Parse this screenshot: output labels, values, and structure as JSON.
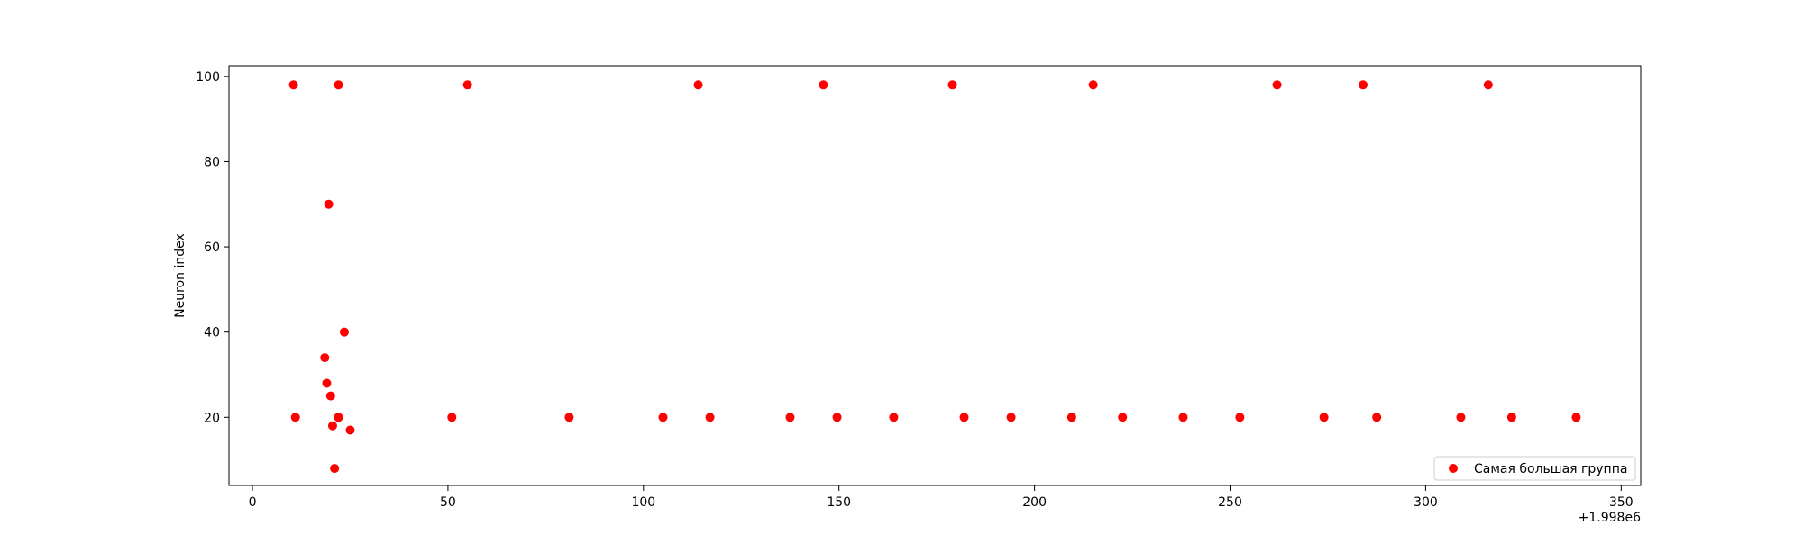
{
  "chart_data": {
    "type": "scatter",
    "title": "",
    "xlabel": "",
    "ylabel": "Neuron index",
    "x_offset_label": "+1.998e6",
    "xlim": [
      -6,
      355
    ],
    "ylim": [
      4,
      102.5
    ],
    "xticks": [
      0,
      50,
      100,
      150,
      200,
      250,
      300,
      350
    ],
    "yticks": [
      20,
      40,
      60,
      80,
      100
    ],
    "grid": false,
    "legend_position": "lower-right",
    "series": [
      {
        "name": "Самая большая группа",
        "color": "#ff0000",
        "marker": "circle",
        "x": [
          10.5,
          22,
          55,
          114,
          146,
          179,
          215,
          262,
          284,
          316,
          19.5,
          23.5,
          18.5,
          19,
          20,
          20.5,
          21,
          25,
          22,
          11,
          22,
          51,
          81,
          105,
          117,
          137.5,
          149.5,
          164,
          182,
          194,
          209.5,
          222.5,
          238,
          252.5,
          274,
          287.5,
          309,
          322,
          338.5
        ],
        "y": [
          98,
          98,
          98,
          98,
          98,
          98,
          98,
          98,
          98,
          98,
          70,
          40,
          34,
          28,
          25,
          18,
          8,
          17,
          20,
          20,
          20,
          20,
          20,
          20,
          20,
          20,
          20,
          20,
          20,
          20,
          20,
          20,
          20,
          20,
          20,
          20,
          20,
          20,
          20
        ]
      }
    ]
  }
}
